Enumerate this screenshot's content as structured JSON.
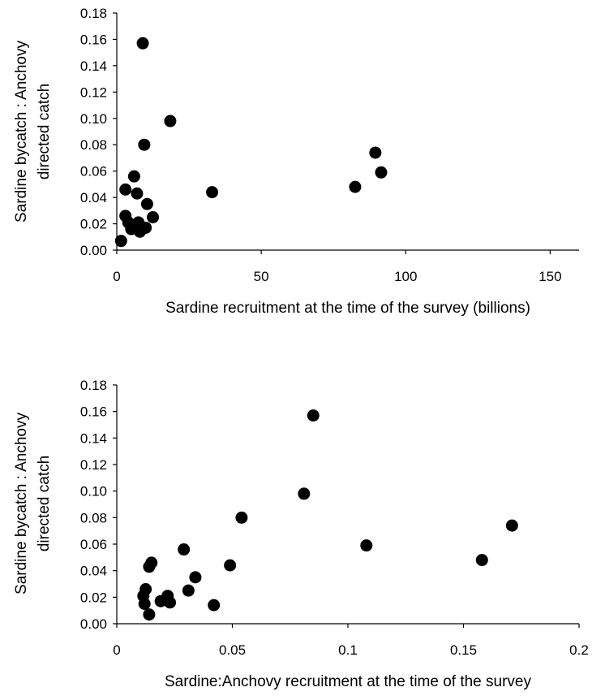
{
  "chart_data": [
    {
      "type": "scatter",
      "title": "",
      "xlabel": "Sardine recruitment at the time of the survey (billions)",
      "ylabel_lines": [
        "Sardine bycatch : Anchovy",
        "directed catch"
      ],
      "xlim": [
        0,
        160
      ],
      "ylim": [
        0,
        0.18
      ],
      "x_ticks": [
        "0",
        "50",
        "100",
        "150"
      ],
      "x_tick_values": [
        0,
        50,
        100,
        150
      ],
      "y_ticks": [
        "0.00",
        "0.02",
        "0.04",
        "0.06",
        "0.08",
        "0.10",
        "0.12",
        "0.14",
        "0.16",
        "0.18"
      ],
      "y_tick_values": [
        0,
        0.02,
        0.04,
        0.06,
        0.08,
        0.1,
        0.12,
        0.14,
        0.16,
        0.18
      ],
      "grid": false,
      "legend": "none",
      "marker_color": "#000000",
      "points": [
        {
          "x": 9.0,
          "y": 0.157
        },
        {
          "x": 18.5,
          "y": 0.098
        },
        {
          "x": 9.5,
          "y": 0.08
        },
        {
          "x": 89.5,
          "y": 0.074
        },
        {
          "x": 91.5,
          "y": 0.059
        },
        {
          "x": 6.0,
          "y": 0.056
        },
        {
          "x": 82.5,
          "y": 0.048
        },
        {
          "x": 3.0,
          "y": 0.046
        },
        {
          "x": 33.0,
          "y": 0.044
        },
        {
          "x": 7.0,
          "y": 0.043
        },
        {
          "x": 10.5,
          "y": 0.035
        },
        {
          "x": 3.0,
          "y": 0.026
        },
        {
          "x": 12.5,
          "y": 0.025
        },
        {
          "x": 4.0,
          "y": 0.021
        },
        {
          "x": 5.5,
          "y": 0.018
        },
        {
          "x": 7.5,
          "y": 0.021
        },
        {
          "x": 5.0,
          "y": 0.016
        },
        {
          "x": 10.0,
          "y": 0.017
        },
        {
          "x": 8.0,
          "y": 0.014
        },
        {
          "x": 1.5,
          "y": 0.007
        }
      ]
    },
    {
      "type": "scatter",
      "title": "",
      "xlabel": "Sardine:Anchovy recruitment at the time of the survey",
      "ylabel_lines": [
        "Sardine bycatch : Anchovy",
        "directed catch"
      ],
      "xlim": [
        0,
        0.2
      ],
      "ylim": [
        0,
        0.18
      ],
      "x_ticks": [
        "0",
        "0.05",
        "0.1",
        "0.15",
        "0.2"
      ],
      "x_tick_values": [
        0,
        0.05,
        0.1,
        0.15,
        0.2
      ],
      "y_ticks": [
        "0.00",
        "0.02",
        "0.04",
        "0.06",
        "0.08",
        "0.10",
        "0.12",
        "0.14",
        "0.16",
        "0.18"
      ],
      "y_tick_values": [
        0,
        0.02,
        0.04,
        0.06,
        0.08,
        0.1,
        0.12,
        0.14,
        0.16,
        0.18
      ],
      "grid": false,
      "legend": "none",
      "marker_color": "#000000",
      "points": [
        {
          "x": 0.085,
          "y": 0.157
        },
        {
          "x": 0.081,
          "y": 0.098
        },
        {
          "x": 0.054,
          "y": 0.08
        },
        {
          "x": 0.171,
          "y": 0.074
        },
        {
          "x": 0.108,
          "y": 0.059
        },
        {
          "x": 0.029,
          "y": 0.056
        },
        {
          "x": 0.158,
          "y": 0.048
        },
        {
          "x": 0.015,
          "y": 0.046
        },
        {
          "x": 0.049,
          "y": 0.044
        },
        {
          "x": 0.014,
          "y": 0.043
        },
        {
          "x": 0.034,
          "y": 0.035
        },
        {
          "x": 0.031,
          "y": 0.025
        },
        {
          "x": 0.0125,
          "y": 0.026
        },
        {
          "x": 0.0115,
          "y": 0.021
        },
        {
          "x": 0.022,
          "y": 0.021
        },
        {
          "x": 0.019,
          "y": 0.017
        },
        {
          "x": 0.023,
          "y": 0.016
        },
        {
          "x": 0.012,
          "y": 0.015
        },
        {
          "x": 0.042,
          "y": 0.014
        },
        {
          "x": 0.014,
          "y": 0.007
        }
      ]
    }
  ]
}
